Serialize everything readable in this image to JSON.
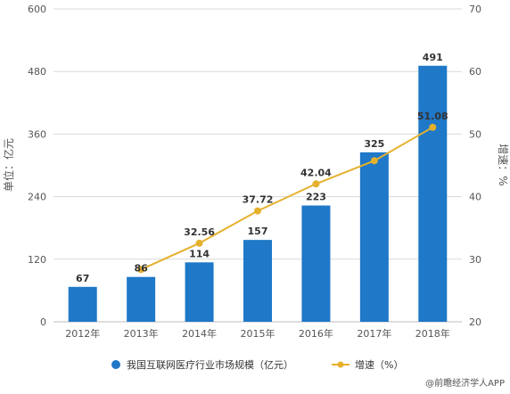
{
  "chart_data": {
    "type": "bar",
    "categories": [
      "2012年",
      "2013年",
      "2014年",
      "2015年",
      "2016年",
      "2017年",
      "2018年"
    ],
    "series": [
      {
        "name": "我国互联网医疗行业市场规模（亿元）",
        "type": "bar",
        "axis": "left",
        "values": [
          67,
          86,
          114,
          157,
          223,
          325,
          491
        ]
      },
      {
        "name": "增速（%）",
        "type": "line",
        "axis": "right",
        "values": [
          null,
          28.36,
          32.56,
          37.72,
          42.04,
          45.74,
          51.08
        ]
      }
    ],
    "bar_labels": [
      "67",
      "86",
      "114",
      "157",
      "223",
      "325",
      "491"
    ],
    "line_labels": [
      "",
      "",
      "32.56",
      "37.72",
      "42.04",
      "",
      "51.08"
    ],
    "ylabel": "单位：亿元",
    "y2label": "增速：%",
    "ylim": [
      0,
      600
    ],
    "yticks": [
      0,
      120,
      240,
      360,
      480,
      600
    ],
    "y2lim": [
      20,
      70
    ],
    "y2ticks": [
      20,
      30,
      40,
      50,
      60,
      70
    ],
    "grid": true,
    "legend_position": "bottom",
    "colors": {
      "bar": "#1f78c8",
      "line": "#e5b12d",
      "grid": "#d9d9d9"
    }
  },
  "watermark_text": "@前瞻经济学人APP"
}
